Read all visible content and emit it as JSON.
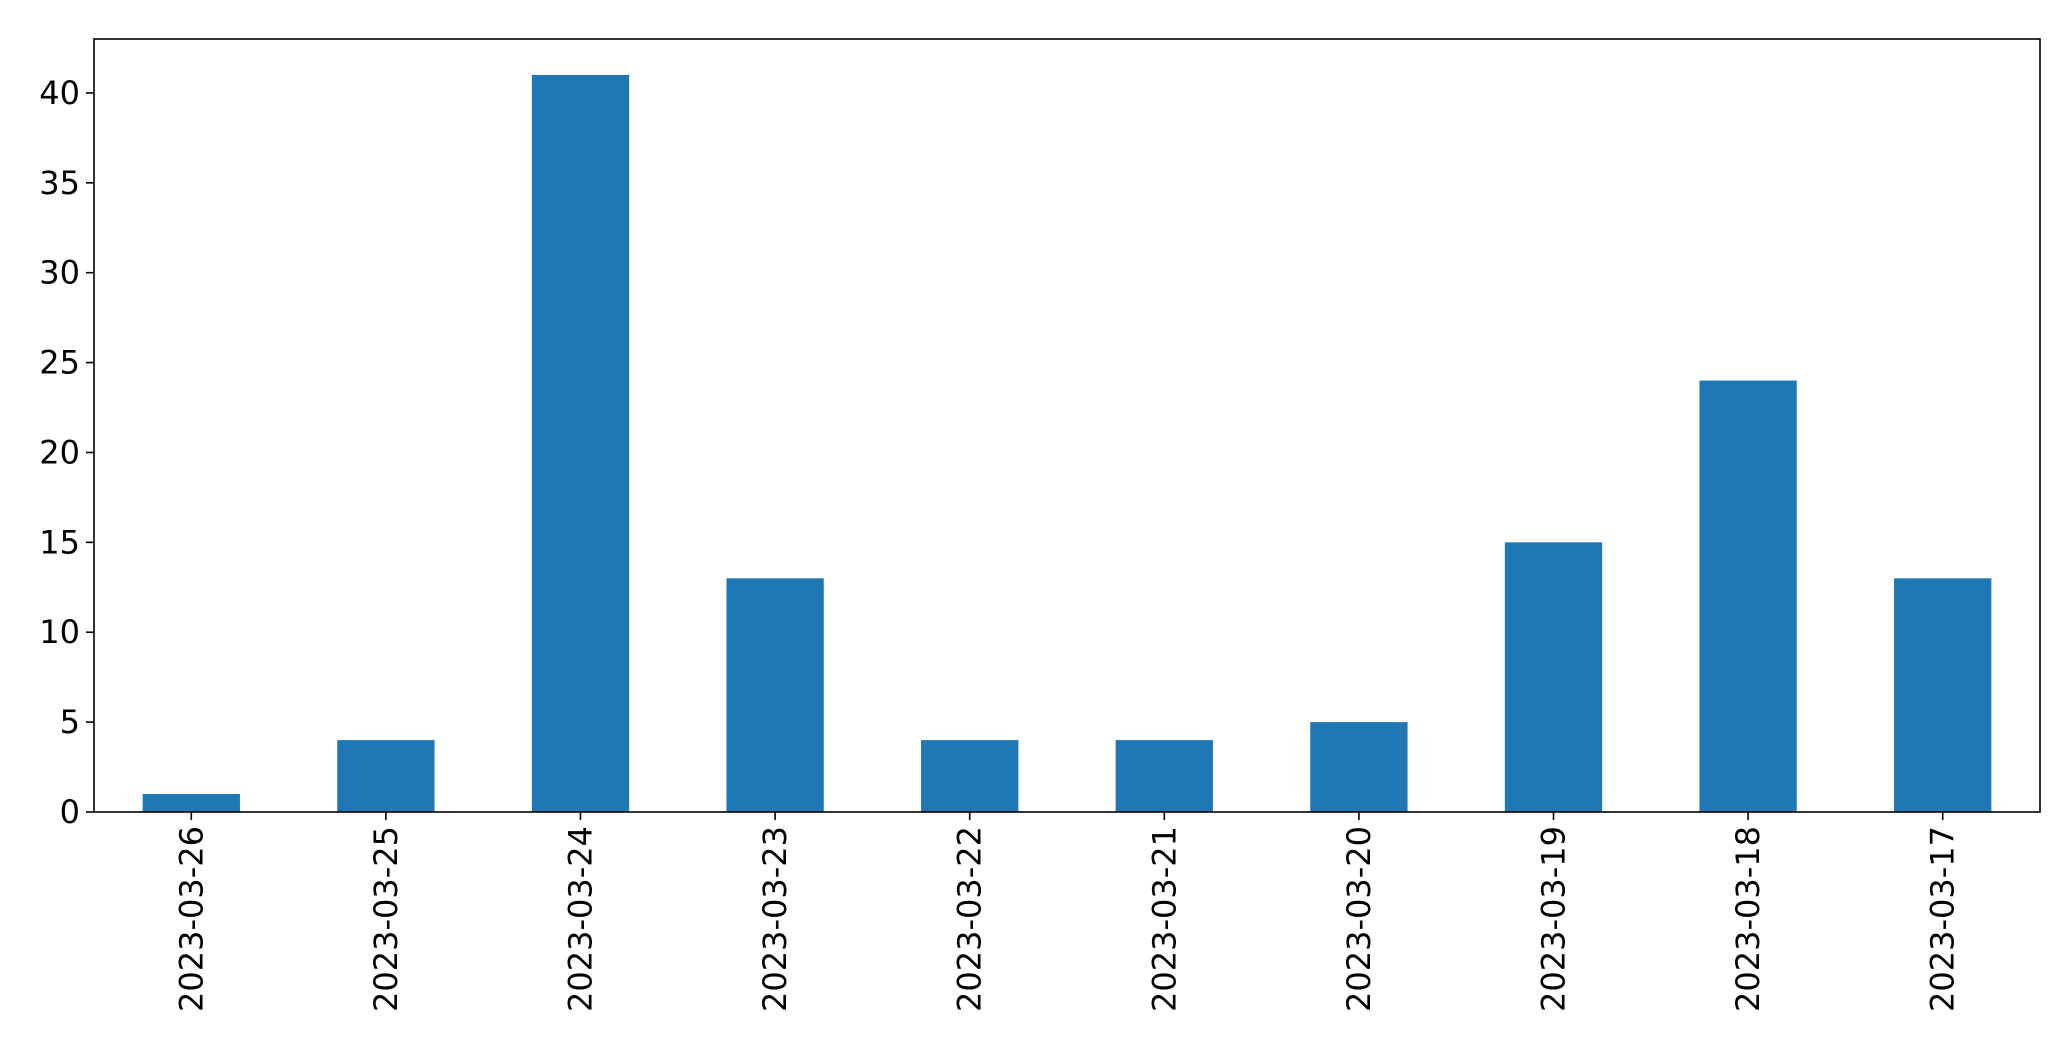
{
  "chart_data": {
    "type": "bar",
    "categories": [
      "2023-03-26",
      "2023-03-25",
      "2023-03-24",
      "2023-03-23",
      "2023-03-22",
      "2023-03-21",
      "2023-03-20",
      "2023-03-19",
      "2023-03-18",
      "2023-03-17"
    ],
    "values": [
      1,
      4,
      41,
      13,
      4,
      4,
      5,
      15,
      24,
      13
    ],
    "title": "",
    "xlabel": "",
    "ylabel": "",
    "ylim": [
      0,
      43
    ],
    "yticks": [
      0,
      5,
      10,
      15,
      20,
      25,
      30,
      35,
      40
    ],
    "grid": false,
    "legend": "none",
    "colors": {
      "bar": "#1f77b4",
      "axis": "#000000"
    }
  }
}
